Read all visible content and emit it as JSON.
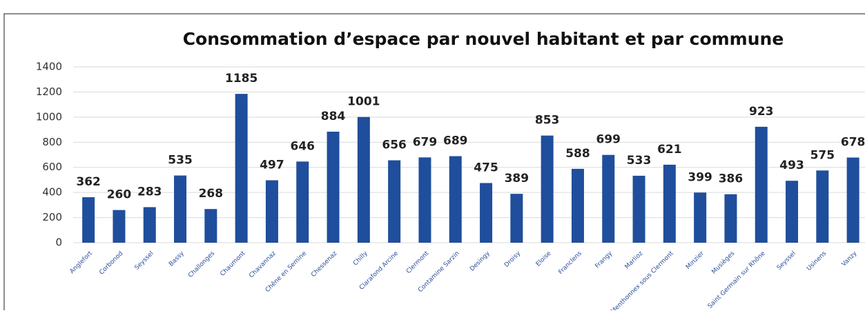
{
  "chart_data": {
    "type": "bar",
    "title": "Consommation d’espace par nouvel habitant et par commune",
    "categories": [
      "Anglefort",
      "Corbonod",
      "Seyssel",
      "Bassy",
      "Challonges",
      "Chaumont",
      "Chavannaz",
      "Chêne en Semine",
      "Chessenaz",
      "Chilly",
      "Clarafond Arcine",
      "Clermont",
      "Contamine Sarzin",
      "Desingy",
      "Droisy",
      "Eloise",
      "Franclens",
      "Frangy",
      "Marlioz",
      "Menthonnex sous Clermont",
      "Minzier",
      "Musièges",
      "Saint Germain sur Rhône",
      "Seyssel",
      "Usinens",
      "Vanzy"
    ],
    "values": [
      362,
      260,
      283,
      535,
      268,
      1185,
      497,
      646,
      884,
      1001,
      656,
      679,
      689,
      475,
      389,
      853,
      588,
      699,
      533,
      621,
      399,
      386,
      923,
      493,
      575,
      678
    ],
    "color": "#1f4e9c",
    "ylim": [
      0,
      1400
    ],
    "yticks": [
      0,
      200,
      400,
      600,
      800,
      1000,
      1200,
      1400
    ],
    "grid": true
  }
}
